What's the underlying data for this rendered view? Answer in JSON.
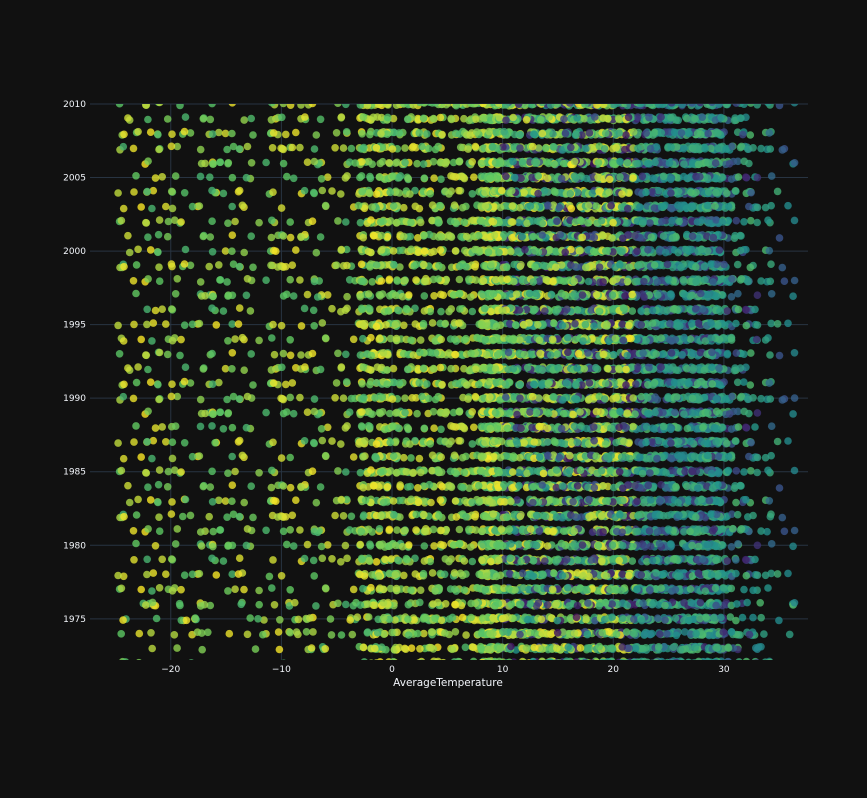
{
  "chart_data": {
    "type": "scatter",
    "title": "",
    "xlabel": "AverageTemperature",
    "ylabel": "",
    "xlim": [
      -27.3,
      37.6
    ],
    "ylim": [
      1972.2,
      2010
    ],
    "x_ticks": [
      -20,
      -10,
      0,
      10,
      20,
      30
    ],
    "x_tick_labels": [
      "−20",
      "−10",
      "0",
      "10",
      "20",
      "30"
    ],
    "y_ticks": [
      1975,
      1980,
      1985,
      1990,
      1995,
      2000,
      2005,
      2010
    ],
    "y_tick_labels": [
      "1975",
      "1980",
      "1985",
      "1990",
      "1995",
      "2000",
      "2005",
      "2010"
    ],
    "grid": true,
    "legend": "none",
    "y_values": "integer years 1972–2010, one row of points per year",
    "x_distribution": "dense between about 0 and 30, sparse tail down to about -25, max about 36",
    "marker_colorscale": [
      "#440154",
      "#3b528b",
      "#21918c",
      "#5ec962",
      "#fde725"
    ],
    "marker_opacity": 0.8,
    "background": "#111111",
    "gridcolor": "#283442"
  }
}
